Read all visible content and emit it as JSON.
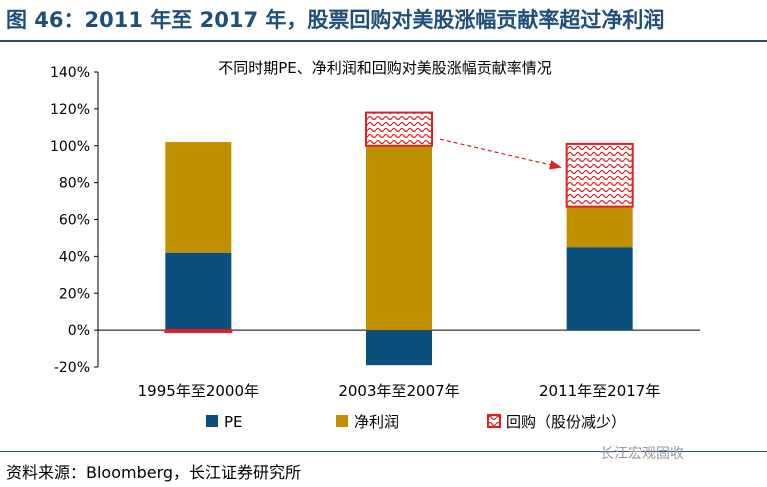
{
  "figure": {
    "title": "图 46：2011 年至 2017 年，股票回购对美股涨幅贡献率超过净利润",
    "source": "资料来源：Bloomberg，长江证券研究所",
    "watermark": "长江宏观固收"
  },
  "colors": {
    "title": "#1f4e79",
    "pe": "#0b4f7c",
    "net_profit": "#bf9000",
    "buyback": "#e02020"
  },
  "chart_data": {
    "type": "bar",
    "stacked": true,
    "title": "不同时期PE、净利润和回购对美股涨幅贡献率情况",
    "categories": [
      "1995年至2000年",
      "2003年至2007年",
      "2011年至2017年"
    ],
    "series": [
      {
        "name": "PE",
        "values": [
          42,
          -19,
          45
        ]
      },
      {
        "name": "净利润",
        "values": [
          60,
          100,
          22
        ]
      },
      {
        "name": "回购（股份减少）",
        "values": [
          -1,
          18,
          34
        ]
      }
    ],
    "ylim": [
      -20,
      140
    ],
    "yticks": [
      -20,
      0,
      20,
      40,
      60,
      80,
      100,
      120,
      140
    ],
    "ytick_labels": [
      "-20%",
      "0%",
      "20%",
      "40%",
      "60%",
      "80%",
      "100%",
      "120%",
      "140%"
    ],
    "annotation": "arrow from 2003年至2007年 buyback to 2011年至2017年 buyback"
  }
}
